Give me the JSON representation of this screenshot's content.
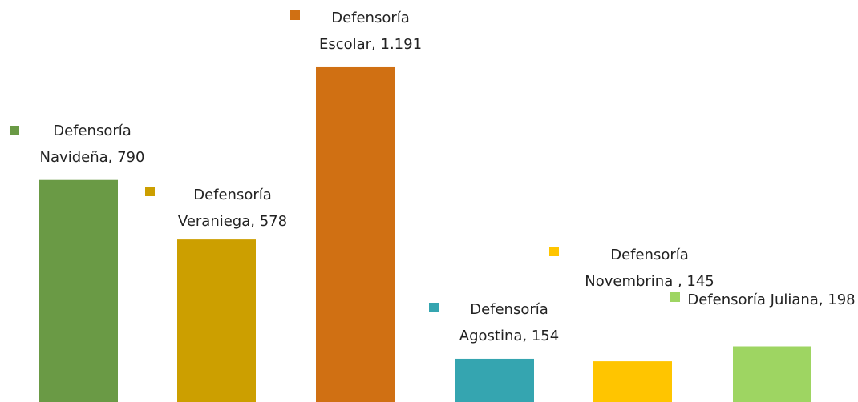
{
  "chart_data": {
    "type": "bar",
    "categories": [
      "Defensoría Navideña",
      "Defensoría Veraniega",
      "Defensoría Escolar",
      "Defensoría Agostina",
      "Defensoría Novembrina ",
      "Defensoría Juliana"
    ],
    "values": [
      790,
      578,
      1191,
      154,
      145,
      198
    ],
    "data_labels": [
      "Defensoría Navideña, 790",
      "Defensoría Veraniega, 578",
      "Defensoría Escolar, 1.191",
      "Defensoría Agostina, 154",
      "Defensoría Novembrina , 145",
      "Defensoría Juliana, 198"
    ],
    "colors": [
      "#6a9a45",
      "#cc9f00",
      "#d07013",
      "#35a5b0",
      "#ffc500",
      "#9ed562"
    ]
  }
}
